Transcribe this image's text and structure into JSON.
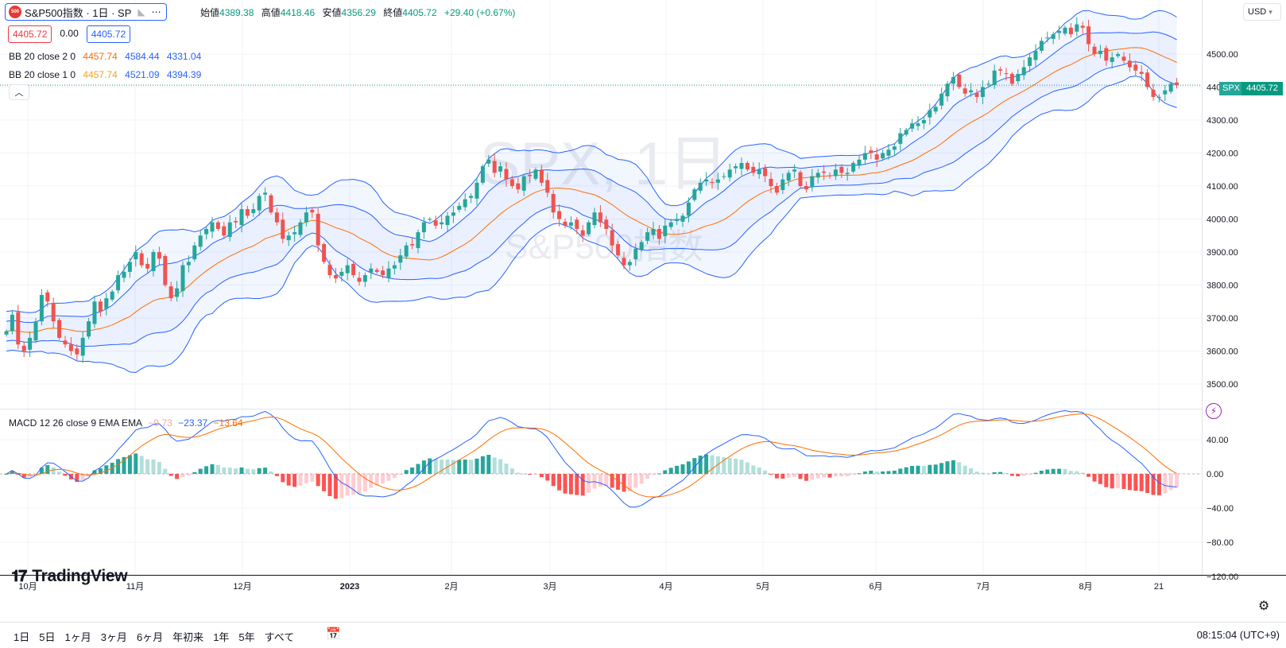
{
  "symbol": {
    "logo": "500",
    "title": "S&P500指数 · 1日 · SP",
    "flag_icon": "flag-icon",
    "more_icon": "more-dots-icon"
  },
  "ohlc": {
    "open_label": "始値",
    "open": "4389.38",
    "high_label": "高値",
    "high": "4418.46",
    "low_label": "安値",
    "low": "4356.29",
    "close_label": "終値",
    "close": "4405.72",
    "change": "+29.40 (+0.67%)"
  },
  "price_chips": {
    "sell": "4405.72",
    "spread": "0.00",
    "buy": "4405.72"
  },
  "indicators": [
    {
      "name": "BB 20 close 2 0",
      "basis": "4457.74",
      "upper": "4584.44",
      "lower": "4331.04"
    },
    {
      "name": "BB 20 close 1 0",
      "basis": "4457.74",
      "upper": "4521.09",
      "lower": "4394.39"
    }
  ],
  "macd_legend": {
    "name": "MACD 12 26 close 9 EMA EMA",
    "hist": "−9.73",
    "macd": "−23.37",
    "signal": "−13.64"
  },
  "watermark": {
    "line1": "SPX, 1日",
    "line2": "S&P500指数"
  },
  "price_scale": {
    "currency": "USD",
    "ticks": [
      "4500.00",
      "4400.00",
      "4300.00",
      "4200.00",
      "4100.00",
      "4000.00",
      "3900.00",
      "3800.00",
      "3700.00",
      "3600.00",
      "3500.00"
    ],
    "last_symbol": "SPX",
    "last_price": "4405.72"
  },
  "macd_scale": {
    "ticks": [
      "40.00",
      "0.00",
      "−40.00",
      "−80.00",
      "−120.00"
    ]
  },
  "time_axis": [
    "10月",
    "11月",
    "12月",
    "2023",
    "2月",
    "3月",
    "4月",
    "5月",
    "6月",
    "7月",
    "8月",
    "21"
  ],
  "range_buttons": [
    "1日",
    "5日",
    "1ヶ月",
    "3ヶ月",
    "6ヶ月",
    "年初来",
    "1年",
    "5年",
    "すべて"
  ],
  "time_display": "08:15:04 (UTC+9)",
  "tv_logo": "TradingView",
  "colors": {
    "up": "#26a69a",
    "down": "#ef5350",
    "bb2": "#2962ff",
    "bb1": "#2962ff",
    "basis": "#ff6d00",
    "macd": "#2962ff",
    "signal": "#ff6d00"
  },
  "chart_data": {
    "type": "candlestick",
    "series": [
      {
        "name": "SPX",
        "close": [
          3660,
          3710,
          3620,
          3600,
          3640,
          3690,
          3770,
          3750,
          3690,
          3640,
          3620,
          3600,
          3590,
          3640,
          3690,
          3750,
          3720,
          3760,
          3780,
          3830,
          3840,
          3870,
          3900,
          3860,
          3850,
          3900,
          3880,
          3800,
          3760,
          3790,
          3860,
          3870,
          3920,
          3950,
          3970,
          3990,
          3970,
          3950,
          3990,
          3990,
          4030,
          4010,
          4030,
          4070,
          4080,
          4020,
          3990,
          3940,
          3950,
          3960,
          3990,
          4020,
          4020,
          3920,
          3870,
          3830,
          3820,
          3840,
          3860,
          3830,
          3810,
          3830,
          3850,
          3840,
          3830,
          3850,
          3860,
          3890,
          3920,
          3920,
          3960,
          3990,
          4000,
          3980,
          3990,
          4010,
          4020,
          4040,
          4060,
          4070,
          4110,
          4160,
          4180,
          4140,
          4160,
          4120,
          4100,
          4090,
          4130,
          4130,
          4150,
          4110,
          4080,
          4020,
          4000,
          3980,
          3990,
          3970,
          3950,
          3990,
          4020,
          3990,
          3970,
          3920,
          3890,
          3860,
          3870,
          3910,
          3930,
          3960,
          3970,
          3940,
          3980,
          3990,
          4000,
          4010,
          4050,
          4090,
          4110,
          4120,
          4110,
          4120,
          4130,
          4150,
          4160,
          4170,
          4150,
          4140,
          4150,
          4130,
          4100,
          4080,
          4120,
          4140,
          4150,
          4100,
          4090,
          4130,
          4140,
          4140,
          4130,
          4150,
          4140,
          4140,
          4170,
          4180,
          4200,
          4200,
          4180,
          4200,
          4210,
          4220,
          4260,
          4270,
          4290,
          4290,
          4300,
          4330,
          4340,
          4380,
          4410,
          4430,
          4400,
          4380,
          4390,
          4370,
          4400,
          4410,
          4450,
          4450,
          4440,
          4410,
          4440,
          4460,
          4490,
          4510,
          4540,
          4550,
          4560,
          4570,
          4580,
          4560,
          4590,
          4580,
          4530,
          4500,
          4510,
          4480,
          4490,
          4500,
          4480,
          4460,
          4450,
          4440,
          4400,
          4370,
          4370,
          4390,
          4410,
          4405.72
        ]
      }
    ],
    "ylim": [
      3490,
      4590
    ],
    "bb_upper_ylim_note": ""
  }
}
